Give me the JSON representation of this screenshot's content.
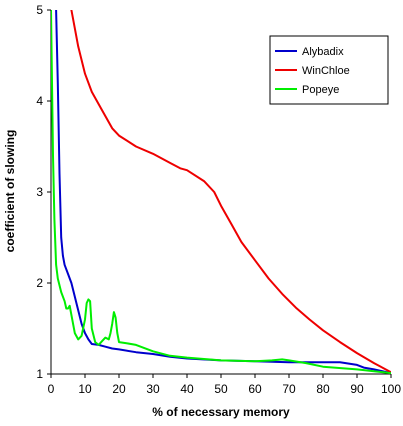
{
  "chart_data": {
    "type": "line",
    "title": "",
    "xlabel": "% of necessary memory",
    "ylabel": "coefficient of slowing",
    "xlim": [
      0,
      100
    ],
    "ylim": [
      1,
      5
    ],
    "x_ticks": [
      0,
      10,
      20,
      30,
      40,
      50,
      60,
      70,
      80,
      90,
      100
    ],
    "y_ticks": [
      1,
      2,
      3,
      4,
      5
    ],
    "grid": false,
    "legend_position": "top-right",
    "series": [
      {
        "name": "Alybadix",
        "color": "#0000cc",
        "x": [
          1.5,
          2,
          2.5,
          3,
          3.5,
          4,
          5,
          6,
          7,
          8,
          9,
          10,
          11,
          12,
          14,
          16,
          18,
          20,
          25,
          30,
          35,
          40,
          50,
          60,
          70,
          80,
          85,
          90,
          92,
          95,
          100
        ],
        "y": [
          5.0,
          4.2,
          3.2,
          2.5,
          2.3,
          2.2,
          2.1,
          2.0,
          1.85,
          1.7,
          1.55,
          1.45,
          1.38,
          1.33,
          1.32,
          1.3,
          1.28,
          1.27,
          1.24,
          1.22,
          1.19,
          1.17,
          1.15,
          1.14,
          1.13,
          1.13,
          1.13,
          1.1,
          1.07,
          1.05,
          1.01
        ]
      },
      {
        "name": "WinChloe",
        "color": "#ee0000",
        "x": [
          6,
          8,
          10,
          12,
          15,
          18,
          20,
          25,
          30,
          35,
          38,
          40,
          45,
          48,
          50,
          53,
          56,
          60,
          64,
          68,
          72,
          76,
          80,
          85,
          90,
          95,
          100
        ],
        "y": [
          5.0,
          4.6,
          4.3,
          4.1,
          3.9,
          3.7,
          3.62,
          3.5,
          3.42,
          3.32,
          3.26,
          3.24,
          3.12,
          3.0,
          2.85,
          2.65,
          2.45,
          2.25,
          2.05,
          1.88,
          1.73,
          1.6,
          1.48,
          1.35,
          1.23,
          1.12,
          1.02
        ]
      },
      {
        "name": "Popeye",
        "color": "#00ee00",
        "x": [
          0,
          0.3,
          0.6,
          1,
          1.5,
          2,
          3,
          4,
          4.5,
          5,
          5.5,
          6,
          7,
          8,
          9,
          10,
          10.5,
          11,
          11.5,
          12,
          13,
          14,
          15,
          16,
          17,
          17.5,
          18,
          18.5,
          19,
          19.5,
          20,
          22,
          25,
          30,
          35,
          40,
          50,
          60,
          65,
          68,
          70,
          75,
          80,
          90,
          95,
          100
        ],
        "y": [
          5.0,
          4.2,
          3.4,
          2.7,
          2.2,
          2.05,
          1.9,
          1.8,
          1.72,
          1.72,
          1.75,
          1.65,
          1.45,
          1.38,
          1.42,
          1.6,
          1.78,
          1.82,
          1.8,
          1.5,
          1.35,
          1.32,
          1.36,
          1.4,
          1.38,
          1.45,
          1.55,
          1.68,
          1.62,
          1.45,
          1.35,
          1.34,
          1.32,
          1.25,
          1.2,
          1.18,
          1.15,
          1.14,
          1.15,
          1.16,
          1.15,
          1.12,
          1.08,
          1.05,
          1.03,
          1.01
        ]
      }
    ]
  }
}
